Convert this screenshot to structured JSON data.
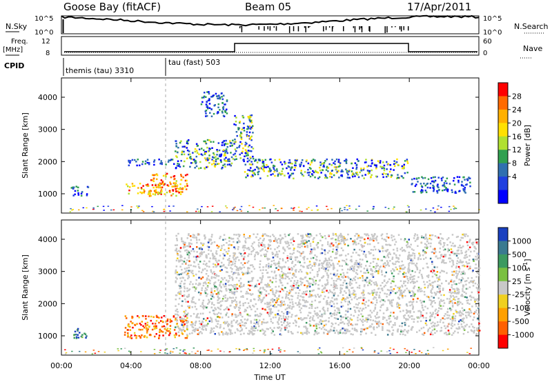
{
  "header": {
    "station": "Goose Bay (fitACF)",
    "beam": "Beam 05",
    "date": "17/Apr/2011"
  },
  "top_panels": {
    "nsky_label": "N.Sky",
    "nsearch_label": "N.Search",
    "freq_label": "Freq.",
    "freq_unit": "[MHz]",
    "nave_label": "Nave",
    "cpid_label": "CPID",
    "nsky_ticks": [
      "10^5",
      "10^0"
    ],
    "nsearch_ticks": [
      "10^5",
      "10^0"
    ],
    "freq_ticks": [
      "12",
      "8"
    ],
    "nave_ticks": [
      "60",
      "0"
    ],
    "cpid_segments": [
      {
        "label": "themis (tau) 3310",
        "start_hour": 0.1
      },
      {
        "label": "tau (fast) 503",
        "start_hour": 6.0
      }
    ]
  },
  "chart_data": [
    {
      "type": "heatmap",
      "name": "power",
      "ylabel": "Slant Range [km]",
      "ylim": [
        400,
        4600
      ],
      "yticks": [
        "1000",
        "2000",
        "3000",
        "4000"
      ],
      "xlim": [
        0,
        24
      ],
      "colorbar": {
        "label": "Power [dB]",
        "ticks": [
          "28",
          "24",
          "20",
          "16",
          "12",
          "8",
          "4"
        ],
        "colors": [
          "#ff0000",
          "#ff6a00",
          "#ffb000",
          "#ffe000",
          "#b0e030",
          "#30a050",
          "#3070b0",
          "#2040e0",
          "#0000ff"
        ]
      },
      "echo_regions": [
        {
          "t0": 0.5,
          "t1": 1.5,
          "r0": 950,
          "r1": 1250,
          "level": "low"
        },
        {
          "t0": 3.6,
          "t1": 5.8,
          "r0": 1000,
          "r1": 1350,
          "level": "high"
        },
        {
          "t0": 5.0,
          "t1": 7.2,
          "r0": 950,
          "r1": 1650,
          "level": "high"
        },
        {
          "t0": 3.8,
          "t1": 6.5,
          "r0": 1900,
          "r1": 2100,
          "level": "low"
        },
        {
          "t0": 6.5,
          "t1": 9.8,
          "r0": 1800,
          "r1": 2700,
          "level": "mid"
        },
        {
          "t0": 8.0,
          "t1": 9.5,
          "r0": 3400,
          "r1": 4200,
          "level": "low"
        },
        {
          "t0": 9.8,
          "t1": 11.0,
          "r0": 2000,
          "r1": 3500,
          "level": "mid"
        },
        {
          "t0": 10.5,
          "t1": 19.9,
          "r0": 1500,
          "r1": 2100,
          "level": "mid"
        },
        {
          "t0": 20.0,
          "t1": 23.5,
          "r0": 1050,
          "r1": 1550,
          "level": "low"
        },
        {
          "t0": 0.0,
          "t1": 24.0,
          "r0": 450,
          "r1": 650,
          "level": "noise"
        }
      ]
    },
    {
      "type": "heatmap",
      "name": "velocity",
      "ylabel": "Slant Range [km]",
      "ylim": [
        400,
        4600
      ],
      "yticks": [
        "1000",
        "2000",
        "3000",
        "4000"
      ],
      "xlim": [
        0,
        24
      ],
      "xlabel": "Time UT",
      "xticks": [
        "00:00",
        "04:00",
        "08:00",
        "12:00",
        "16:00",
        "20:00",
        "00:00"
      ],
      "colorbar": {
        "label": "Velocity [m s",
        "label_sup": "-1",
        "label_end": "]",
        "ticks": [
          "1000",
          "500",
          "100",
          "25",
          "-25",
          "-100",
          "-500",
          "-1000"
        ],
        "colors": [
          "#1a40c0",
          "#3a7a90",
          "#3c9a60",
          "#7ac040",
          "#c8c8c8",
          "#f0d020",
          "#ffa000",
          "#ff6000",
          "#ff0000"
        ]
      },
      "echo_regions": [
        {
          "t0": 0.5,
          "t1": 1.5,
          "r0": 950,
          "r1": 1250,
          "level": "toward"
        },
        {
          "t0": 3.6,
          "t1": 7.2,
          "r0": 950,
          "r1": 1650,
          "level": "away"
        },
        {
          "t0": 6.5,
          "t1": 24.0,
          "r0": 1050,
          "r1": 4200,
          "level": "ground"
        },
        {
          "t0": 0.0,
          "t1": 24.0,
          "r0": 450,
          "r1": 650,
          "level": "noise"
        }
      ]
    }
  ]
}
